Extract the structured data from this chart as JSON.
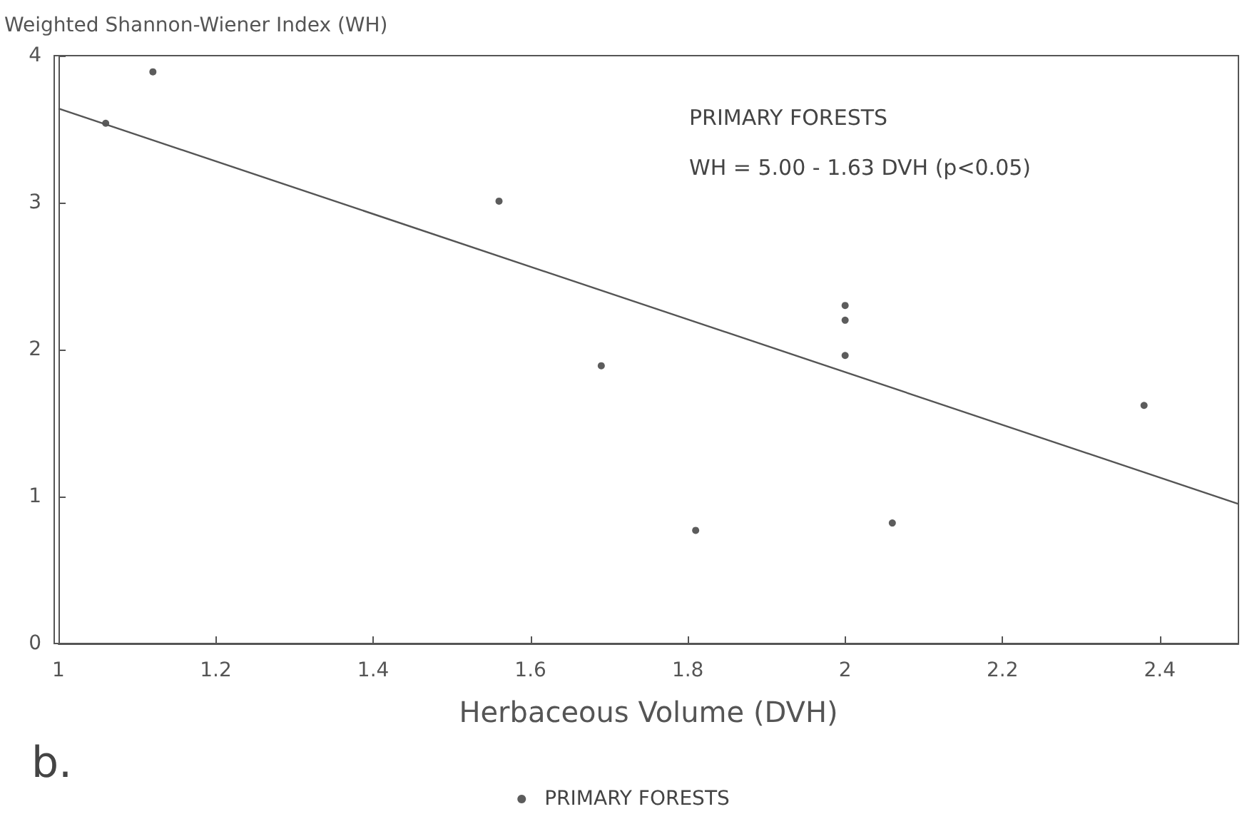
{
  "chart_data": {
    "type": "scatter",
    "ylabel": "Weighted Shannon-Wiener Index (WH)",
    "xlabel": "Herbaceous Volume (DVH)",
    "xlim": [
      1,
      2.5
    ],
    "xticks": [
      1,
      1.2,
      1.4,
      1.6,
      1.8,
      2,
      2.2,
      2.4
    ],
    "ylim": [
      0,
      4
    ],
    "yticks": [
      0,
      1,
      2,
      3,
      4
    ],
    "grid": false,
    "legend": "bottom",
    "marker": "circle",
    "annotations": [
      "PRIMARY FORESTS",
      "WH = 5.00 - 1.63 DVH (p<0.05)",
      "b."
    ],
    "series": [
      {
        "name": "PRIMARY FORESTS",
        "color": "#333333",
        "x": [
          1.06,
          1.12,
          1.56,
          1.69,
          1.81,
          2.0,
          2.0,
          2.0,
          2.06,
          2.38
        ],
        "values": [
          3.54,
          3.89,
          3.01,
          1.89,
          0.77,
          2.3,
          2.2,
          1.96,
          0.82,
          1.62
        ]
      },
      {
        "type": "line",
        "color": "#555555",
        "marker": "none",
        "x": [
          1,
          2.5
        ],
        "values": [
          3.64,
          0.95
        ]
      }
    ]
  }
}
